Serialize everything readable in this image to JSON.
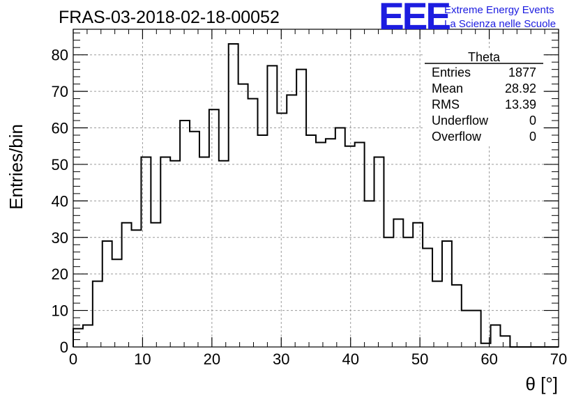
{
  "header": {
    "run_title": "FRAS-03-2018-02-18-00052",
    "logo": {
      "mark": "EEE",
      "line1": "Extreme Energy Events",
      "line2": "La Scienza nelle Scuole"
    }
  },
  "stats_box": {
    "title": "Theta",
    "rows": [
      {
        "label": "Entries",
        "value": "1877"
      },
      {
        "label": "Mean",
        "value": "28.92"
      },
      {
        "label": "RMS",
        "value": "13.39"
      },
      {
        "label": "Underflow",
        "value": "0"
      },
      {
        "label": "Overflow",
        "value": "0"
      }
    ]
  },
  "chart_data": {
    "type": "bar",
    "histogram": true,
    "xlabel": "θ [°]",
    "ylabel": "Entries/bin",
    "xlim": [
      0,
      70
    ],
    "ylim": [
      0,
      87
    ],
    "bin_width": 1.4,
    "bin_edges_start": 0,
    "x_ticks": [
      "0",
      "10",
      "20",
      "30",
      "40",
      "50",
      "60",
      "70"
    ],
    "y_ticks": [
      "0",
      "10",
      "20",
      "30",
      "40",
      "50",
      "60",
      "70",
      "80"
    ],
    "grid": true,
    "values": [
      5,
      6,
      18,
      29,
      24,
      34,
      32,
      52,
      34,
      52,
      51,
      62,
      59,
      52,
      65,
      51,
      83,
      72,
      68,
      58,
      77,
      64,
      69,
      76,
      58,
      56,
      57,
      60,
      55,
      56,
      40,
      52,
      30,
      35,
      30,
      34,
      27,
      18,
      29,
      17,
      10,
      10,
      1,
      6,
      3,
      0,
      0,
      0,
      0,
      0
    ]
  }
}
